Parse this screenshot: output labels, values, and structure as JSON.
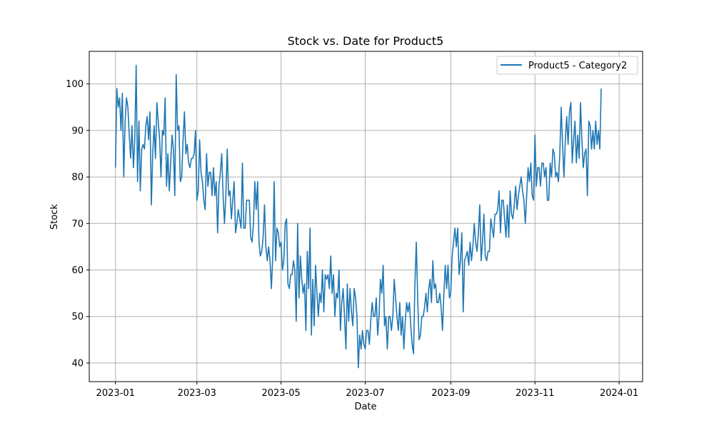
{
  "chart_data": {
    "type": "line",
    "title": "Stock vs. Date for Product5",
    "xlabel": "Date",
    "ylabel": "Stock",
    "xlim": [
      "2022-12-13",
      "2024-01-18"
    ],
    "ylim": [
      36,
      107
    ],
    "x_ticks": [
      "2023-01",
      "2023-03",
      "2023-05",
      "2023-07",
      "2023-09",
      "2023-11",
      "2024-01"
    ],
    "y_ticks": [
      40,
      50,
      60,
      70,
      80,
      90,
      100
    ],
    "grid": true,
    "legend_position": "top-right",
    "series": [
      {
        "name": "Product5 - Category2",
        "color": "#1f77b4",
        "start_date": "2023-01-01",
        "frequency": "daily",
        "values": [
          82,
          99,
          95,
          97,
          90,
          98,
          80,
          92,
          97,
          95,
          89,
          84,
          91,
          82,
          88,
          104,
          79,
          92,
          77,
          86,
          87,
          86,
          91,
          93,
          88,
          94,
          74,
          85,
          91,
          84,
          96,
          92,
          88,
          80,
          90,
          89,
          97,
          78,
          85,
          77,
          83,
          89,
          86,
          76,
          102,
          90,
          91,
          79,
          80,
          88,
          94,
          85,
          87,
          83,
          82,
          84,
          84,
          85,
          90,
          75,
          77,
          88,
          81,
          79,
          75,
          73,
          85,
          78,
          81,
          81,
          76,
          82,
          76,
          79,
          68,
          78,
          81,
          85,
          76,
          70,
          76,
          86,
          76,
          77,
          71,
          75,
          79,
          68,
          70,
          73,
          71,
          69,
          83,
          69,
          69,
          75,
          75,
          75,
          67,
          66,
          70,
          79,
          73,
          79,
          66,
          63,
          64,
          67,
          74,
          65,
          62,
          65,
          62,
          56,
          63,
          79,
          62,
          69,
          68,
          65,
          66,
          60,
          62,
          70,
          71,
          57,
          56,
          59,
          59,
          62,
          60,
          49,
          70,
          54,
          63,
          58,
          55,
          57,
          47,
          64,
          56,
          69,
          46,
          58,
          48,
          61,
          55,
          50,
          55,
          53,
          60,
          51,
          59,
          58,
          59,
          56,
          63,
          55,
          59,
          50,
          55,
          54,
          60,
          47,
          53,
          56,
          50,
          43,
          57,
          49,
          56,
          51,
          48,
          56,
          54,
          50,
          39,
          46,
          43,
          47,
          44,
          43,
          47,
          47,
          44,
          49,
          53,
          50,
          50,
          54,
          46,
          50,
          58,
          55,
          61,
          48,
          50,
          43,
          50,
          50,
          47,
          50,
          58,
          54,
          50,
          47,
          53,
          46,
          50,
          43,
          49,
          53,
          51,
          53,
          48,
          44,
          42,
          57,
          66,
          54,
          45,
          46,
          50,
          50,
          52,
          55,
          51,
          56,
          58,
          53,
          62,
          56,
          57,
          53,
          53,
          55,
          52,
          47,
          55,
          61,
          56,
          61,
          54,
          55,
          63,
          66,
          69,
          65,
          69,
          59,
          62,
          68,
          51,
          62,
          63,
          64,
          61,
          66,
          62,
          65,
          70,
          66,
          64,
          68,
          74,
          62,
          66,
          72,
          63,
          62,
          64,
          64,
          71,
          69,
          67,
          72,
          72,
          73,
          77,
          68,
          75,
          75,
          71,
          67,
          74,
          67,
          77,
          72,
          71,
          74,
          78,
          73,
          76,
          78,
          80,
          77,
          75,
          70,
          76,
          82,
          79,
          83,
          76,
          75,
          89,
          78,
          82,
          82,
          78,
          83,
          83,
          80,
          82,
          75,
          75,
          83,
          80,
          86,
          85,
          80,
          81,
          79,
          85,
          95,
          87,
          80,
          88,
          93,
          87,
          94,
          96,
          83,
          88,
          92,
          83,
          89,
          84,
          96,
          88,
          82,
          85,
          86,
          76,
          92,
          91,
          86,
          90,
          86,
          92,
          87,
          90,
          86,
          99
        ]
      }
    ]
  }
}
